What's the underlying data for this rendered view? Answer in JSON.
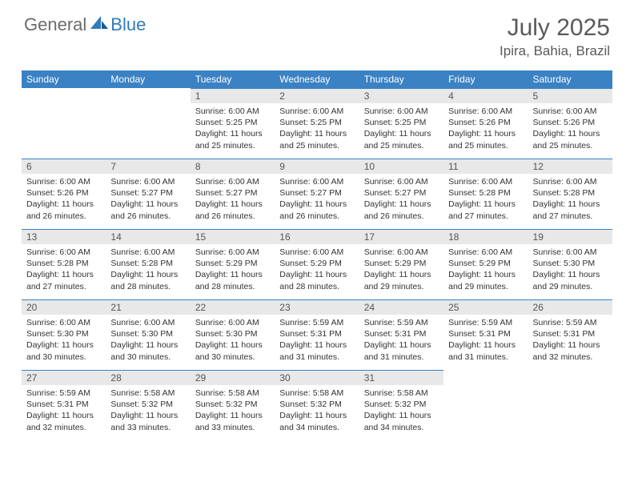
{
  "brand": {
    "general": "General",
    "blue": "Blue"
  },
  "title": "July 2025",
  "location": "Ipira, Bahia, Brazil",
  "colors": {
    "header_bg": "#3b82c4",
    "header_text": "#ffffff",
    "daynum_bg": "#e8e8e8",
    "border": "#3b82c4",
    "logo_gray": "#6b6b6b",
    "logo_blue": "#2f7bbf"
  },
  "dayHeaders": [
    "Sunday",
    "Monday",
    "Tuesday",
    "Wednesday",
    "Thursday",
    "Friday",
    "Saturday"
  ],
  "weeks": [
    [
      null,
      null,
      {
        "n": "1",
        "sunrise": "6:00 AM",
        "sunset": "5:25 PM",
        "daylight": "11 hours and 25 minutes."
      },
      {
        "n": "2",
        "sunrise": "6:00 AM",
        "sunset": "5:25 PM",
        "daylight": "11 hours and 25 minutes."
      },
      {
        "n": "3",
        "sunrise": "6:00 AM",
        "sunset": "5:25 PM",
        "daylight": "11 hours and 25 minutes."
      },
      {
        "n": "4",
        "sunrise": "6:00 AM",
        "sunset": "5:26 PM",
        "daylight": "11 hours and 25 minutes."
      },
      {
        "n": "5",
        "sunrise": "6:00 AM",
        "sunset": "5:26 PM",
        "daylight": "11 hours and 25 minutes."
      }
    ],
    [
      {
        "n": "6",
        "sunrise": "6:00 AM",
        "sunset": "5:26 PM",
        "daylight": "11 hours and 26 minutes."
      },
      {
        "n": "7",
        "sunrise": "6:00 AM",
        "sunset": "5:27 PM",
        "daylight": "11 hours and 26 minutes."
      },
      {
        "n": "8",
        "sunrise": "6:00 AM",
        "sunset": "5:27 PM",
        "daylight": "11 hours and 26 minutes."
      },
      {
        "n": "9",
        "sunrise": "6:00 AM",
        "sunset": "5:27 PM",
        "daylight": "11 hours and 26 minutes."
      },
      {
        "n": "10",
        "sunrise": "6:00 AM",
        "sunset": "5:27 PM",
        "daylight": "11 hours and 26 minutes."
      },
      {
        "n": "11",
        "sunrise": "6:00 AM",
        "sunset": "5:28 PM",
        "daylight": "11 hours and 27 minutes."
      },
      {
        "n": "12",
        "sunrise": "6:00 AM",
        "sunset": "5:28 PM",
        "daylight": "11 hours and 27 minutes."
      }
    ],
    [
      {
        "n": "13",
        "sunrise": "6:00 AM",
        "sunset": "5:28 PM",
        "daylight": "11 hours and 27 minutes."
      },
      {
        "n": "14",
        "sunrise": "6:00 AM",
        "sunset": "5:28 PM",
        "daylight": "11 hours and 28 minutes."
      },
      {
        "n": "15",
        "sunrise": "6:00 AM",
        "sunset": "5:29 PM",
        "daylight": "11 hours and 28 minutes."
      },
      {
        "n": "16",
        "sunrise": "6:00 AM",
        "sunset": "5:29 PM",
        "daylight": "11 hours and 28 minutes."
      },
      {
        "n": "17",
        "sunrise": "6:00 AM",
        "sunset": "5:29 PM",
        "daylight": "11 hours and 29 minutes."
      },
      {
        "n": "18",
        "sunrise": "6:00 AM",
        "sunset": "5:29 PM",
        "daylight": "11 hours and 29 minutes."
      },
      {
        "n": "19",
        "sunrise": "6:00 AM",
        "sunset": "5:30 PM",
        "daylight": "11 hours and 29 minutes."
      }
    ],
    [
      {
        "n": "20",
        "sunrise": "6:00 AM",
        "sunset": "5:30 PM",
        "daylight": "11 hours and 30 minutes."
      },
      {
        "n": "21",
        "sunrise": "6:00 AM",
        "sunset": "5:30 PM",
        "daylight": "11 hours and 30 minutes."
      },
      {
        "n": "22",
        "sunrise": "6:00 AM",
        "sunset": "5:30 PM",
        "daylight": "11 hours and 30 minutes."
      },
      {
        "n": "23",
        "sunrise": "5:59 AM",
        "sunset": "5:31 PM",
        "daylight": "11 hours and 31 minutes."
      },
      {
        "n": "24",
        "sunrise": "5:59 AM",
        "sunset": "5:31 PM",
        "daylight": "11 hours and 31 minutes."
      },
      {
        "n": "25",
        "sunrise": "5:59 AM",
        "sunset": "5:31 PM",
        "daylight": "11 hours and 31 minutes."
      },
      {
        "n": "26",
        "sunrise": "5:59 AM",
        "sunset": "5:31 PM",
        "daylight": "11 hours and 32 minutes."
      }
    ],
    [
      {
        "n": "27",
        "sunrise": "5:59 AM",
        "sunset": "5:31 PM",
        "daylight": "11 hours and 32 minutes."
      },
      {
        "n": "28",
        "sunrise": "5:58 AM",
        "sunset": "5:32 PM",
        "daylight": "11 hours and 33 minutes."
      },
      {
        "n": "29",
        "sunrise": "5:58 AM",
        "sunset": "5:32 PM",
        "daylight": "11 hours and 33 minutes."
      },
      {
        "n": "30",
        "sunrise": "5:58 AM",
        "sunset": "5:32 PM",
        "daylight": "11 hours and 34 minutes."
      },
      {
        "n": "31",
        "sunrise": "5:58 AM",
        "sunset": "5:32 PM",
        "daylight": "11 hours and 34 minutes."
      },
      null,
      null
    ]
  ],
  "labels": {
    "sunrise": "Sunrise:",
    "sunset": "Sunset:",
    "daylight": "Daylight:"
  }
}
